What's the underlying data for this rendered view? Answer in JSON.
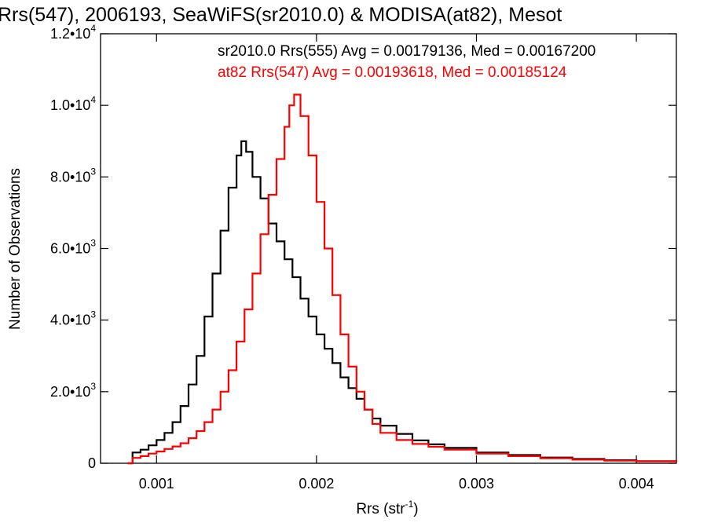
{
  "chart_data": {
    "type": "line",
    "title": "Rrs(547), 2006193, SeaWiFS(sr2010.0) & MODISA(at82), Mesot",
    "xlabel": "Rrs (str",
    "xlabel_sup": "-1",
    "xlabel_close": ")",
    "ylabel": "Number of Observations",
    "xlim": [
      0.00065,
      0.00425
    ],
    "ylim": [
      0,
      12000
    ],
    "xticks": [
      {
        "value": 0.001,
        "label": "0.001"
      },
      {
        "value": 0.002,
        "label": "0.002"
      },
      {
        "value": 0.003,
        "label": "0.003"
      },
      {
        "value": 0.004,
        "label": "0.004"
      }
    ],
    "yticks": [
      {
        "value": 0,
        "label": "0",
        "sup": ""
      },
      {
        "value": 2000,
        "label": "2.0•10",
        "sup": "3"
      },
      {
        "value": 4000,
        "label": "4.0•10",
        "sup": "3"
      },
      {
        "value": 6000,
        "label": "6.0•10",
        "sup": "3"
      },
      {
        "value": 8000,
        "label": "8.0•10",
        "sup": "3"
      },
      {
        "value": 10000,
        "label": "1.0•10",
        "sup": "4"
      },
      {
        "value": 12000,
        "label": "1.2•10",
        "sup": "4"
      }
    ],
    "grid": false,
    "legend_position": "top-right",
    "series": [
      {
        "name": "sr2010.0 Rrs(555) Avg = 0.00179136, Med = 0.00167200",
        "color": "#000000",
        "points": [
          [
            0.00082,
            0
          ],
          [
            0.00085,
            300
          ],
          [
            0.0009,
            380
          ],
          [
            0.00095,
            500
          ],
          [
            0.001,
            650
          ],
          [
            0.00105,
            850
          ],
          [
            0.0011,
            1150
          ],
          [
            0.00115,
            1600
          ],
          [
            0.0012,
            2200
          ],
          [
            0.00125,
            3000
          ],
          [
            0.0013,
            4100
          ],
          [
            0.00135,
            5300
          ],
          [
            0.0014,
            6500
          ],
          [
            0.00145,
            7700
          ],
          [
            0.0015,
            8600
          ],
          [
            0.00153,
            9000
          ],
          [
            0.00156,
            8700
          ],
          [
            0.0016,
            8000
          ],
          [
            0.00165,
            7400
          ],
          [
            0.0017,
            6700
          ],
          [
            0.00175,
            6200
          ],
          [
            0.0018,
            5700
          ],
          [
            0.00185,
            5200
          ],
          [
            0.0019,
            4600
          ],
          [
            0.00195,
            4100
          ],
          [
            0.002,
            3600
          ],
          [
            0.00205,
            3200
          ],
          [
            0.0021,
            2800
          ],
          [
            0.00215,
            2400
          ],
          [
            0.0022,
            2100
          ],
          [
            0.00225,
            1800
          ],
          [
            0.0023,
            1500
          ],
          [
            0.00235,
            1250
          ],
          [
            0.0024,
            1050
          ],
          [
            0.0025,
            820
          ],
          [
            0.0026,
            640
          ],
          [
            0.0027,
            530
          ],
          [
            0.0028,
            430
          ],
          [
            0.003,
            300
          ],
          [
            0.0032,
            230
          ],
          [
            0.0034,
            160
          ],
          [
            0.0036,
            120
          ],
          [
            0.0038,
            85
          ],
          [
            0.004,
            60
          ],
          [
            0.00425,
            40
          ]
        ]
      },
      {
        "name": "at82 Rrs(547) Avg = 0.00193618, Med = 0.00185124",
        "color": "#ff0000",
        "points": [
          [
            0.00082,
            0
          ],
          [
            0.00085,
            150
          ],
          [
            0.0009,
            200
          ],
          [
            0.00095,
            270
          ],
          [
            0.001,
            330
          ],
          [
            0.00105,
            400
          ],
          [
            0.0011,
            470
          ],
          [
            0.00115,
            560
          ],
          [
            0.0012,
            700
          ],
          [
            0.00125,
            900
          ],
          [
            0.0013,
            1150
          ],
          [
            0.00135,
            1500
          ],
          [
            0.0014,
            2000
          ],
          [
            0.00145,
            2600
          ],
          [
            0.0015,
            3400
          ],
          [
            0.00155,
            4300
          ],
          [
            0.0016,
            5300
          ],
          [
            0.00165,
            6400
          ],
          [
            0.0017,
            7500
          ],
          [
            0.00175,
            8500
          ],
          [
            0.0018,
            9400
          ],
          [
            0.00183,
            10000
          ],
          [
            0.00186,
            10300
          ],
          [
            0.0019,
            9700
          ],
          [
            0.00195,
            8600
          ],
          [
            0.002,
            7300
          ],
          [
            0.00205,
            6000
          ],
          [
            0.0021,
            4700
          ],
          [
            0.00215,
            3600
          ],
          [
            0.0022,
            2700
          ],
          [
            0.00225,
            2000
          ],
          [
            0.0023,
            1500
          ],
          [
            0.00235,
            1100
          ],
          [
            0.0024,
            850
          ],
          [
            0.0025,
            650
          ],
          [
            0.0026,
            540
          ],
          [
            0.0027,
            460
          ],
          [
            0.0028,
            380
          ],
          [
            0.003,
            270
          ],
          [
            0.0032,
            200
          ],
          [
            0.0034,
            140
          ],
          [
            0.0036,
            100
          ],
          [
            0.0038,
            75
          ],
          [
            0.004,
            55
          ],
          [
            0.00425,
            40
          ]
        ]
      }
    ]
  }
}
